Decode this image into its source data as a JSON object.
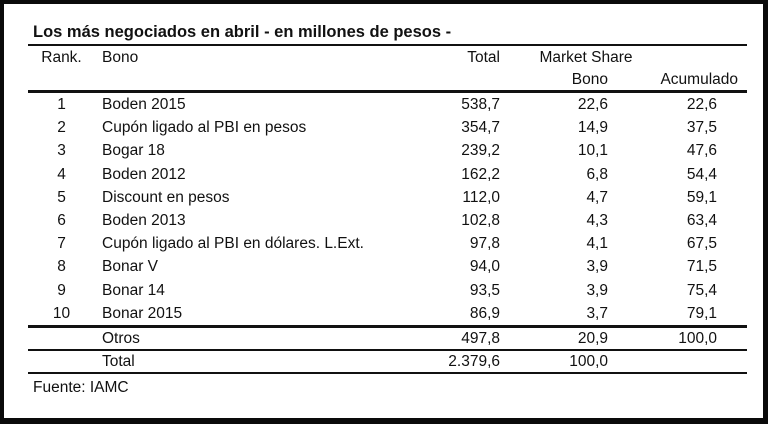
{
  "title": "Los más negociados en abril - en millones de pesos -",
  "headers": {
    "rank": "Rank.",
    "bono": "Bono",
    "total": "Total",
    "market_share": "Market Share",
    "ms_bono": "Bono",
    "ms_acumulado": "Acumulado"
  },
  "footer": {
    "source": "Fuente: IAMC"
  },
  "chart_data": {
    "type": "table",
    "title": "Los más negociados en abril - en millones de pesos -",
    "columns": [
      "Rank.",
      "Bono",
      "Total",
      "Market Share Bono",
      "Market Share Acumulado"
    ],
    "rows": [
      {
        "rank": "1",
        "bono": "Boden 2015",
        "total": "538,7",
        "ms_bono": "22,6",
        "ms_acumulado": "22,6"
      },
      {
        "rank": "2",
        "bono": "Cupón ligado al PBI en pesos",
        "total": "354,7",
        "ms_bono": "14,9",
        "ms_acumulado": "37,5"
      },
      {
        "rank": "3",
        "bono": "Bogar 18",
        "total": "239,2",
        "ms_bono": "10,1",
        "ms_acumulado": "47,6"
      },
      {
        "rank": "4",
        "bono": "Boden 2012",
        "total": "162,2",
        "ms_bono": "6,8",
        "ms_acumulado": "54,4"
      },
      {
        "rank": "5",
        "bono": "Discount en pesos",
        "total": "112,0",
        "ms_bono": "4,7",
        "ms_acumulado": "59,1"
      },
      {
        "rank": "6",
        "bono": "Boden 2013",
        "total": "102,8",
        "ms_bono": "4,3",
        "ms_acumulado": "63,4"
      },
      {
        "rank": "7",
        "bono": "Cupón ligado al PBI en dólares. L.Ext.",
        "total": "97,8",
        "ms_bono": "4,1",
        "ms_acumulado": "67,5"
      },
      {
        "rank": "8",
        "bono": "Bonar V",
        "total": "94,0",
        "ms_bono": "3,9",
        "ms_acumulado": "71,5"
      },
      {
        "rank": "9",
        "bono": "Bonar 14",
        "total": "93,5",
        "ms_bono": "3,9",
        "ms_acumulado": "75,4"
      },
      {
        "rank": "10",
        "bono": "Bonar 2015",
        "total": "86,9",
        "ms_bono": "3,7",
        "ms_acumulado": "79,1"
      }
    ],
    "footer_rows": [
      {
        "label": "Otros",
        "total": "497,8",
        "ms_bono": "20,9",
        "ms_acumulado": "100,0"
      },
      {
        "label": "Total",
        "total": "2.379,6",
        "ms_bono": "100,0",
        "ms_acumulado": ""
      }
    ],
    "source": "Fuente: IAMC"
  }
}
